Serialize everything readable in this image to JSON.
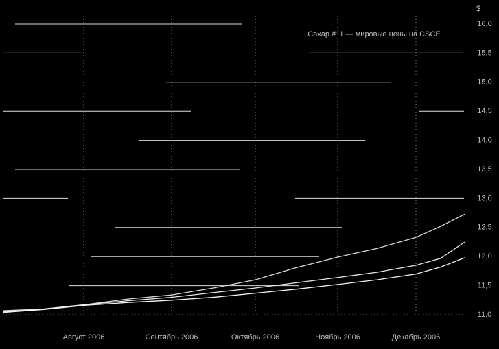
{
  "chart_data": {
    "type": "line",
    "title": "Сахар #11 — мировые цены на CSCE",
    "y_axis_label": "$",
    "categories": [
      null,
      null,
      "Август 2006",
      null,
      "Сентябрь 2006",
      null,
      "Октябрь 2006",
      null,
      "Ноябрь 2006",
      null,
      "Декабрь 2006",
      null,
      null
    ],
    "series": [
      {
        "color": "#d8d8d8",
        "values": [
          11.07,
          11.1,
          11.17,
          11.27,
          11.34,
          11.46,
          11.6,
          11.81,
          11.99,
          12.14,
          12.33,
          12.52,
          12.73
        ]
      },
      {
        "color": "#e8e8e8",
        "values": [
          11.05,
          11.1,
          11.17,
          11.24,
          11.3,
          11.38,
          11.46,
          11.55,
          11.64,
          11.73,
          11.85,
          11.97,
          12.25
        ]
      },
      {
        "color": "#f4f4f4",
        "values": [
          11.04,
          11.09,
          11.16,
          11.21,
          11.25,
          11.3,
          11.37,
          11.44,
          11.52,
          11.6,
          11.7,
          11.82,
          11.98
        ]
      }
    ],
    "ylim": [
      11,
      16
    ],
    "yticks": [
      {
        "value": 11,
        "label": "11,0"
      },
      {
        "value": 11.5,
        "label": "11,5"
      },
      {
        "value": 12,
        "label": "12,0"
      },
      {
        "value": 12.5,
        "label": "12,5"
      },
      {
        "value": 13,
        "label": "13,0"
      },
      {
        "value": 13.5,
        "label": "13,5"
      },
      {
        "value": 14,
        "label": "14,0"
      },
      {
        "value": 14.5,
        "label": "14,5"
      },
      {
        "value": 15,
        "label": "15,0"
      },
      {
        "value": 15.5,
        "label": "15,5"
      },
      {
        "value": 16,
        "label": "16,0"
      }
    ],
    "grid": true
  }
}
